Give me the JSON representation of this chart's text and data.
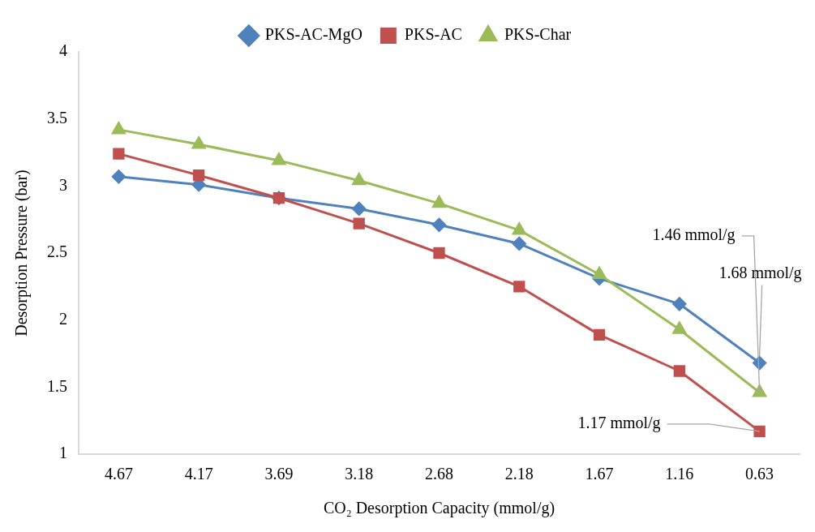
{
  "chart_data": {
    "type": "line",
    "xlabel": "CO₂ Desorption Capacity (mmol/g)",
    "ylabel": "Desorption Pressure (bar)",
    "categories": [
      "4.67",
      "4.17",
      "3.69",
      "3.18",
      "2.68",
      "2.18",
      "1.67",
      "1.16",
      "0.63"
    ],
    "series": [
      {
        "name": "PKS-AC-MgO",
        "color": "#4f81bd",
        "marker": "diamond",
        "values": [
          3.07,
          3.01,
          2.91,
          2.83,
          2.71,
          2.57,
          2.31,
          2.12,
          1.68
        ]
      },
      {
        "name": "PKS-AC",
        "color": "#c0504d",
        "marker": "square",
        "values": [
          3.24,
          3.08,
          2.91,
          2.72,
          2.5,
          2.25,
          1.89,
          1.62,
          1.17
        ]
      },
      {
        "name": "PKS-Char",
        "color": "#9bbb59",
        "marker": "triangle",
        "values": [
          3.42,
          3.31,
          3.19,
          3.04,
          2.87,
          2.67,
          2.34,
          1.93,
          1.46
        ]
      }
    ],
    "ylim": [
      1,
      4
    ],
    "yticks": [
      1,
      1.5,
      2,
      2.5,
      3,
      3.5,
      4
    ],
    "grid": false,
    "legend": "top",
    "line_style": "solid",
    "annotations": [
      {
        "text": "1.46 mmol/g",
        "x": "0.63",
        "y": 1.46
      },
      {
        "text": "1.68 mmol/g",
        "x": "0.63",
        "y": 1.68
      },
      {
        "text": "1.17 mmol/g",
        "x": "0.63",
        "y": 1.17
      }
    ]
  }
}
